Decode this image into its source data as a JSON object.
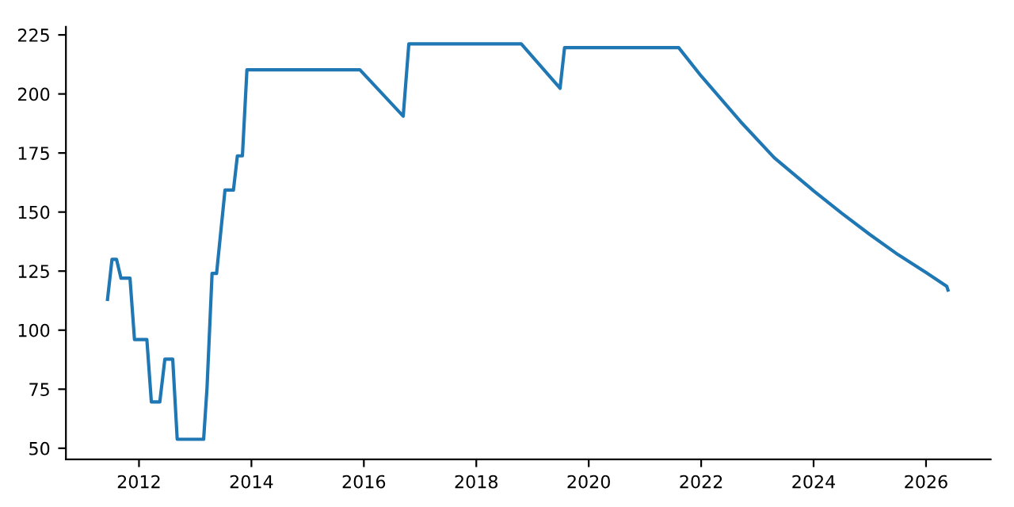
{
  "chart_data": {
    "type": "line",
    "series": [
      {
        "color": "#1f77b4",
        "x": [
          2011.44,
          2011.52,
          2011.6,
          2011.68,
          2011.84,
          2011.92,
          2012.14,
          2012.22,
          2012.37,
          2012.46,
          2012.6,
          2012.68,
          2013.15,
          2013.21,
          2013.3,
          2013.38,
          2013.53,
          2013.68,
          2013.75,
          2013.84,
          2013.92,
          2015.93,
          2016.7,
          2016.8,
          2018.8,
          2019.49,
          2019.57,
          2021.6,
          2022.0,
          2022.7,
          2023.3,
          2024.0,
          2024.5,
          2025.0,
          2025.5,
          2026.0,
          2026.37,
          2026.39
        ],
        "values": [
          113,
          130,
          130,
          122,
          122,
          96,
          96,
          69.6,
          69.6,
          87.7,
          87.7,
          53.8,
          53.8,
          75.5,
          124,
          124,
          159.3,
          159.3,
          173.8,
          173.8,
          210.2,
          210.2,
          190.6,
          221.2,
          221.2,
          202.4,
          219.6,
          219.6,
          207.6,
          188.3,
          173,
          159,
          149.5,
          140.5,
          132,
          124.4,
          118.5,
          117
        ]
      }
    ],
    "xlim": [
      2010.7,
      2027.15
    ],
    "ylim": [
      45.3,
      228.4
    ],
    "xticks": [
      2012,
      2014,
      2016,
      2018,
      2020,
      2022,
      2024,
      2026
    ],
    "yticks": [
      50,
      75,
      100,
      125,
      150,
      175,
      200,
      225
    ],
    "grid": false,
    "marker": "none",
    "line_style": "solid"
  }
}
